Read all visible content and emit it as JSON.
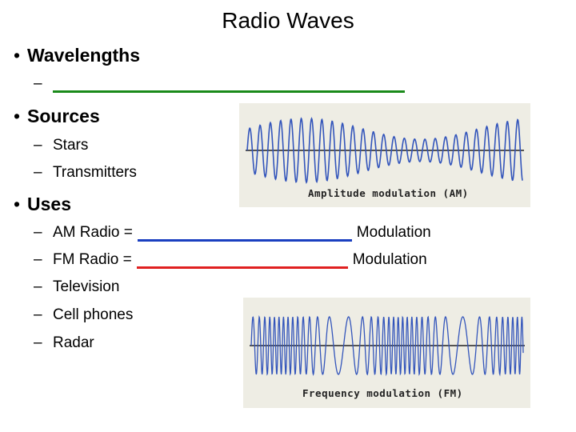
{
  "slide": {
    "title": "Radio Waves",
    "bullets": {
      "wavelengths": "Wavelengths",
      "sources": "Sources",
      "uses": "Uses"
    },
    "sources_items": [
      "Stars",
      "Transmitters"
    ],
    "uses_items": {
      "am_prefix": "AM Radio =",
      "am_suffix": "Modulation",
      "fm_prefix": "FM Radio =",
      "fm_suffix": "Modulation",
      "television": "Television",
      "cell": "Cell phones",
      "radar": "Radar"
    },
    "bullet_glyph": "•",
    "dash_glyph": "–"
  },
  "figures": {
    "am": {
      "caption": "Amplitude modulation (AM)"
    },
    "fm": {
      "caption": "Frequency modulation (FM)"
    }
  },
  "colors": {
    "wavelength_blank": "#1a8a1a",
    "am_blank": "#1a3fc0",
    "fm_blank": "#e02020",
    "wave": "#3355bb",
    "figure_bg": "#eeede4"
  }
}
